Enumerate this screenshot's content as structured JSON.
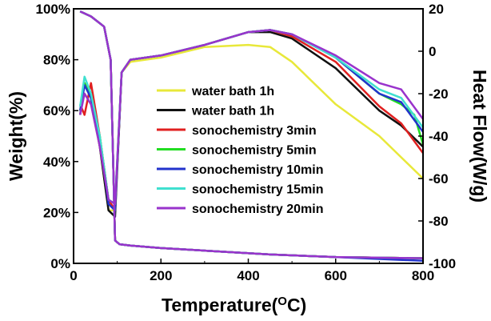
{
  "chart_data": {
    "type": "line",
    "title": "",
    "xlabel": "Temperature(",
    "xlabel_sup": "O",
    "xlabel_unit": "C)",
    "ylabel_left": "Weight(%)",
    "ylabel_right": "Heat Flow(W/g)",
    "xlim": [
      0,
      800
    ],
    "ylim_left": [
      0,
      100
    ],
    "ylim_right": [
      -100,
      20
    ],
    "x_ticks": [
      "0",
      "200",
      "400",
      "600",
      "800"
    ],
    "y_left_ticks": [
      "0%",
      "20%",
      "40%",
      "60%",
      "80%",
      "100%"
    ],
    "y_right_ticks": [
      "-100",
      "-80",
      "-60",
      "-40",
      "-20",
      "0",
      "20"
    ],
    "grid": false,
    "legend_position": "center-right",
    "series": [
      {
        "name": "water bath 1h",
        "color": "#e8e83a",
        "weight": {
          "x": [
            15,
            40,
            70,
            85,
            95,
            105,
            130,
            200,
            300,
            450,
            600,
            800
          ],
          "y": [
            99,
            97,
            93,
            80,
            9,
            7.5,
            7,
            6,
            5,
            3.5,
            2.5,
            2
          ]
        },
        "heat_flow": {
          "x": [
            15,
            25,
            40,
            60,
            80,
            95,
            110,
            130,
            200,
            300,
            400,
            450,
            500,
            600,
            700,
            800
          ],
          "y": [
            -28,
            -20,
            -25,
            -45,
            -75,
            -75,
            -10,
            -5,
            -3,
            2,
            3,
            2,
            -5,
            -25,
            -40,
            -60
          ]
        }
      },
      {
        "name": "water bath 1h",
        "color": "#111111",
        "weight": {
          "x": [
            15,
            40,
            70,
            85,
            95,
            105,
            130,
            200,
            300,
            450,
            600,
            800
          ],
          "y": [
            99,
            97,
            93,
            80,
            9,
            7.5,
            7,
            6,
            5,
            3.5,
            2.5,
            2
          ]
        },
        "heat_flow": {
          "x": [
            15,
            25,
            40,
            60,
            80,
            95,
            110,
            130,
            200,
            300,
            400,
            450,
            500,
            600,
            700,
            750,
            800
          ],
          "y": [
            -30,
            -15,
            -22,
            -45,
            -75,
            -78,
            -10,
            -4,
            -2,
            3,
            9,
            9,
            6,
            -8,
            -28,
            -35,
            -45
          ]
        }
      },
      {
        "name": "sonochemistry 3min",
        "color": "#e02020",
        "weight": {
          "x": [
            15,
            40,
            70,
            85,
            95,
            105,
            130,
            200,
            300,
            450,
            600,
            800
          ],
          "y": [
            99,
            97,
            93,
            80,
            9,
            7.5,
            7,
            6,
            5,
            3.5,
            2.5,
            2
          ]
        },
        "heat_flow": {
          "x": [
            15,
            25,
            40,
            60,
            80,
            95,
            110,
            130,
            200,
            300,
            400,
            450,
            500,
            600,
            700,
            750,
            800
          ],
          "y": [
            -25,
            -30,
            -15,
            -40,
            -70,
            -75,
            -10,
            -4,
            -2,
            3,
            9,
            10,
            7,
            -5,
            -26,
            -34,
            -48
          ]
        }
      },
      {
        "name": "sonochemistry 5min",
        "color": "#22dd22",
        "weight": {
          "x": [
            15,
            40,
            70,
            85,
            95,
            105,
            130,
            200,
            300,
            450,
            600,
            800
          ],
          "y": [
            99,
            97,
            93,
            80,
            9,
            7.5,
            7,
            6,
            5,
            3.5,
            2.5,
            2
          ]
        },
        "heat_flow": {
          "x": [
            15,
            25,
            40,
            60,
            80,
            95,
            110,
            130,
            200,
            300,
            400,
            450,
            500,
            600,
            700,
            750,
            780,
            800
          ],
          "y": [
            -28,
            -15,
            -22,
            -40,
            -70,
            -72,
            -10,
            -4,
            -2,
            3,
            9,
            10,
            8,
            -3,
            -20,
            -25,
            -30,
            -44
          ]
        }
      },
      {
        "name": "sonochemistry 10min",
        "color": "#2233cc",
        "weight": {
          "x": [
            15,
            40,
            70,
            85,
            95,
            105,
            130,
            200,
            300,
            450,
            600,
            800
          ],
          "y": [
            99,
            97,
            93,
            80,
            9,
            7.5,
            7,
            6,
            5,
            3.5,
            2.5,
            1
          ]
        },
        "heat_flow": {
          "x": [
            15,
            25,
            40,
            60,
            80,
            95,
            110,
            130,
            200,
            300,
            400,
            450,
            500,
            600,
            700,
            750,
            800
          ],
          "y": [
            -28,
            -16,
            -22,
            -42,
            -72,
            -75,
            -10,
            -4,
            -2,
            3,
            9,
            10,
            8,
            -3,
            -20,
            -24,
            -38
          ]
        }
      },
      {
        "name": "sonochemistry 15min",
        "color": "#40e0d0",
        "weight": {
          "x": [
            15,
            40,
            70,
            85,
            95,
            105,
            130,
            200,
            300,
            450,
            600,
            800
          ],
          "y": [
            99,
            97,
            93,
            80,
            9,
            7.5,
            7,
            6,
            5,
            3.5,
            2.5,
            2
          ]
        },
        "heat_flow": {
          "x": [
            15,
            25,
            40,
            60,
            80,
            95,
            110,
            130,
            200,
            300,
            400,
            450,
            500,
            600,
            700,
            750,
            800
          ],
          "y": [
            -26,
            -12,
            -20,
            -40,
            -70,
            -72,
            -10,
            -4,
            -2,
            3,
            9,
            10,
            8,
            -3,
            -18,
            -22,
            -36
          ]
        }
      },
      {
        "name": "sonochemistry 20min",
        "color": "#9933cc",
        "weight": {
          "x": [
            15,
            40,
            70,
            85,
            95,
            105,
            130,
            200,
            300,
            450,
            600,
            800
          ],
          "y": [
            99,
            97,
            93,
            80,
            9,
            7.5,
            7,
            6,
            5,
            3.5,
            2.5,
            2
          ]
        },
        "heat_flow": {
          "x": [
            15,
            25,
            40,
            60,
            80,
            95,
            110,
            130,
            200,
            300,
            400,
            450,
            500,
            600,
            700,
            750,
            800
          ],
          "y": [
            -30,
            -20,
            -25,
            -45,
            -70,
            -72,
            -10,
            -4,
            -2,
            3,
            9,
            10,
            8,
            -2,
            -15,
            -18,
            -32
          ]
        }
      }
    ]
  }
}
